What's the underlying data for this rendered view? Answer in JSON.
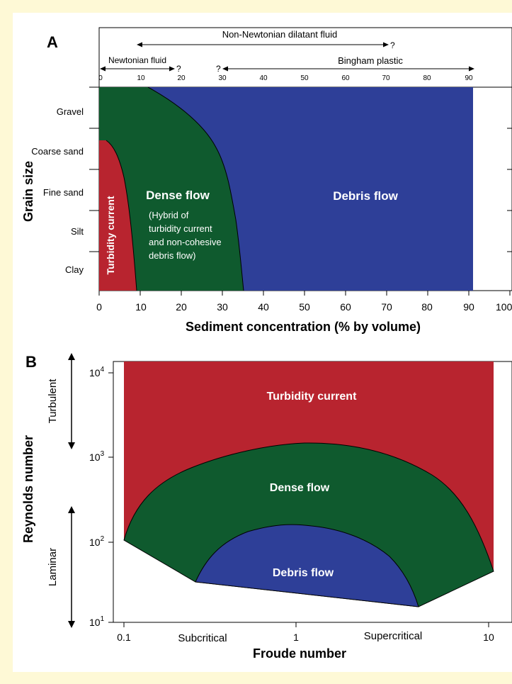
{
  "panel_a": {
    "letter": "A",
    "top_scale": {
      "newtonian": "Newtonian fluid",
      "dilatant": "Non-Newtonian dilatant fluid",
      "bingham": "Bingham plastic",
      "q": "?",
      "ticks": [
        "0",
        "10",
        "20",
        "30",
        "40",
        "50",
        "60",
        "70",
        "80",
        "90"
      ]
    },
    "y_label": "Grain size",
    "y_categories": [
      "Gravel",
      "Coarse sand",
      "Fine sand",
      "Silt",
      "Clay"
    ],
    "x_label": "Sediment concentration (% by volume)",
    "x_ticks": [
      "0",
      "10",
      "20",
      "30",
      "40",
      "50",
      "60",
      "70",
      "80",
      "90",
      "100"
    ],
    "regions": {
      "turbidity": "Turbidity current",
      "dense": "Dense flow",
      "dense_note_1": "(Hybrid of",
      "dense_note_2": "turbidity current",
      "dense_note_3": "and non-cohesive",
      "dense_note_4": "debris flow)",
      "debris": "Debris flow"
    }
  },
  "panel_b": {
    "letter": "B",
    "y_label": "Reynolds number",
    "turbulent": "Turbulent",
    "laminar": "Laminar",
    "y_tick_base": "10",
    "y_tick_exps": [
      "4",
      "3",
      "2",
      "1"
    ],
    "x_label": "Froude number",
    "x_ticks": [
      "0.1",
      "1",
      "10"
    ],
    "subcritical": "Subcritical",
    "supercritical": "Supercritical",
    "regions": {
      "turbidity": "Turbidity current",
      "dense": "Dense flow",
      "debris": "Debris flow"
    }
  },
  "colors": {
    "red": "#b8242f",
    "green": "#0f5a2e",
    "blue": "#2e3f98",
    "frame": "#fef9d6"
  }
}
